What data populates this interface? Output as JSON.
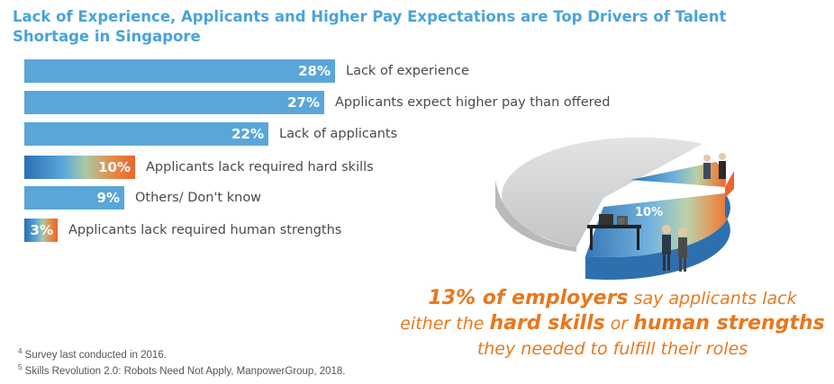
{
  "chart_data": {
    "type": "bar",
    "title": "Lack of Experience, Applicants and Higher Pay Expectations are Top Drivers of Talent Shortage in Singapore",
    "orientation": "horizontal",
    "categories": [
      "Lack of experience",
      "Applicants expect higher pay than offered",
      "Lack of applicants",
      "Applicants lack required hard skills",
      "Others/ Don't know",
      "Applicants lack required human strengths"
    ],
    "values": [
      28,
      27,
      22,
      10,
      9,
      3
    ],
    "value_labels": [
      "28%",
      "27%",
      "22%",
      "10%",
      "9%",
      "3%"
    ],
    "bar_style": [
      "solid",
      "solid",
      "solid",
      "gradient",
      "solid",
      "gradient"
    ],
    "xlim": [
      0,
      28
    ]
  },
  "pie": {
    "total_pct": 100,
    "highlighted_slices": [
      {
        "value": 10,
        "label": "10%"
      },
      {
        "value": 3,
        "label": "3%"
      }
    ]
  },
  "callout": {
    "part1": "13% of employers",
    "part2": " say applicants lack",
    "part3": "either the ",
    "part4": "hard skills",
    "part5": " or ",
    "part6": "human strengths",
    "part7": "they needed to fulfill their roles"
  },
  "footnotes": [
    {
      "mark": "4",
      "text": " Survey last conducted in 2016."
    },
    {
      "mark": "5",
      "text": " Skills Revolution 2.0: Robots Need Not Apply, ManpowerGroup, 2018."
    }
  ],
  "colors": {
    "title": "#4aa3d8",
    "bar": "#5aa6d9",
    "gradient": [
      "#2c6fb3",
      "#5aa6d9",
      "#a9c9a6",
      "#e58a45",
      "#e8662e"
    ],
    "callout": "#e8781e",
    "pie_gray": "#d4d5d6"
  }
}
